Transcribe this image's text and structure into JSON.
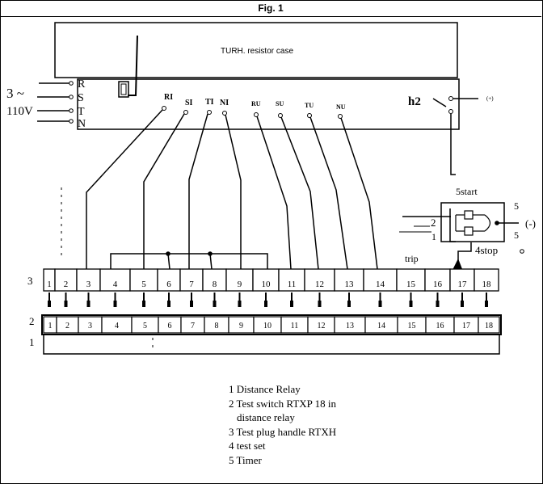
{
  "figure": {
    "title": "Fig. 1",
    "resistor_case_label": "TURH. resistor case",
    "supply": {
      "phase_label": "3 ~",
      "voltage_label": "110V",
      "terminals": [
        "R",
        "S",
        "T",
        "N"
      ]
    },
    "test_set_terminals": [
      "RI",
      "SI",
      "TI",
      "NI",
      "RU",
      "SU",
      "TU",
      "NU"
    ],
    "h2_label": "h2",
    "plus_label": "(+)",
    "minus_label": "(-)",
    "timer": {
      "start_label": "5start",
      "stop_label": "4stop",
      "trip_label": "trip",
      "num_2": "2",
      "num_1": "1",
      "num_5_top": "5",
      "num_5_bottom": "5"
    },
    "row_labels": [
      "3",
      "2",
      "1"
    ],
    "row3_cells": [
      "1",
      "2",
      "3",
      "4",
      "5",
      "6",
      "7",
      "8",
      "9",
      "10",
      "11",
      "12",
      "13",
      "14",
      "15",
      "16",
      "17",
      "18"
    ],
    "row2_cells": [
      "1",
      "2",
      "3",
      "4",
      "5",
      "6",
      "7",
      "8",
      "9",
      "10",
      "11",
      "12",
      "13",
      "14",
      "15",
      "16",
      "17",
      "18"
    ],
    "legend": [
      "1 Distance Relay",
      "2 Test switch RTXP 18 in",
      "distance relay",
      "3 Test plug handle RTXH",
      "4 test set",
      "5 Timer"
    ]
  }
}
